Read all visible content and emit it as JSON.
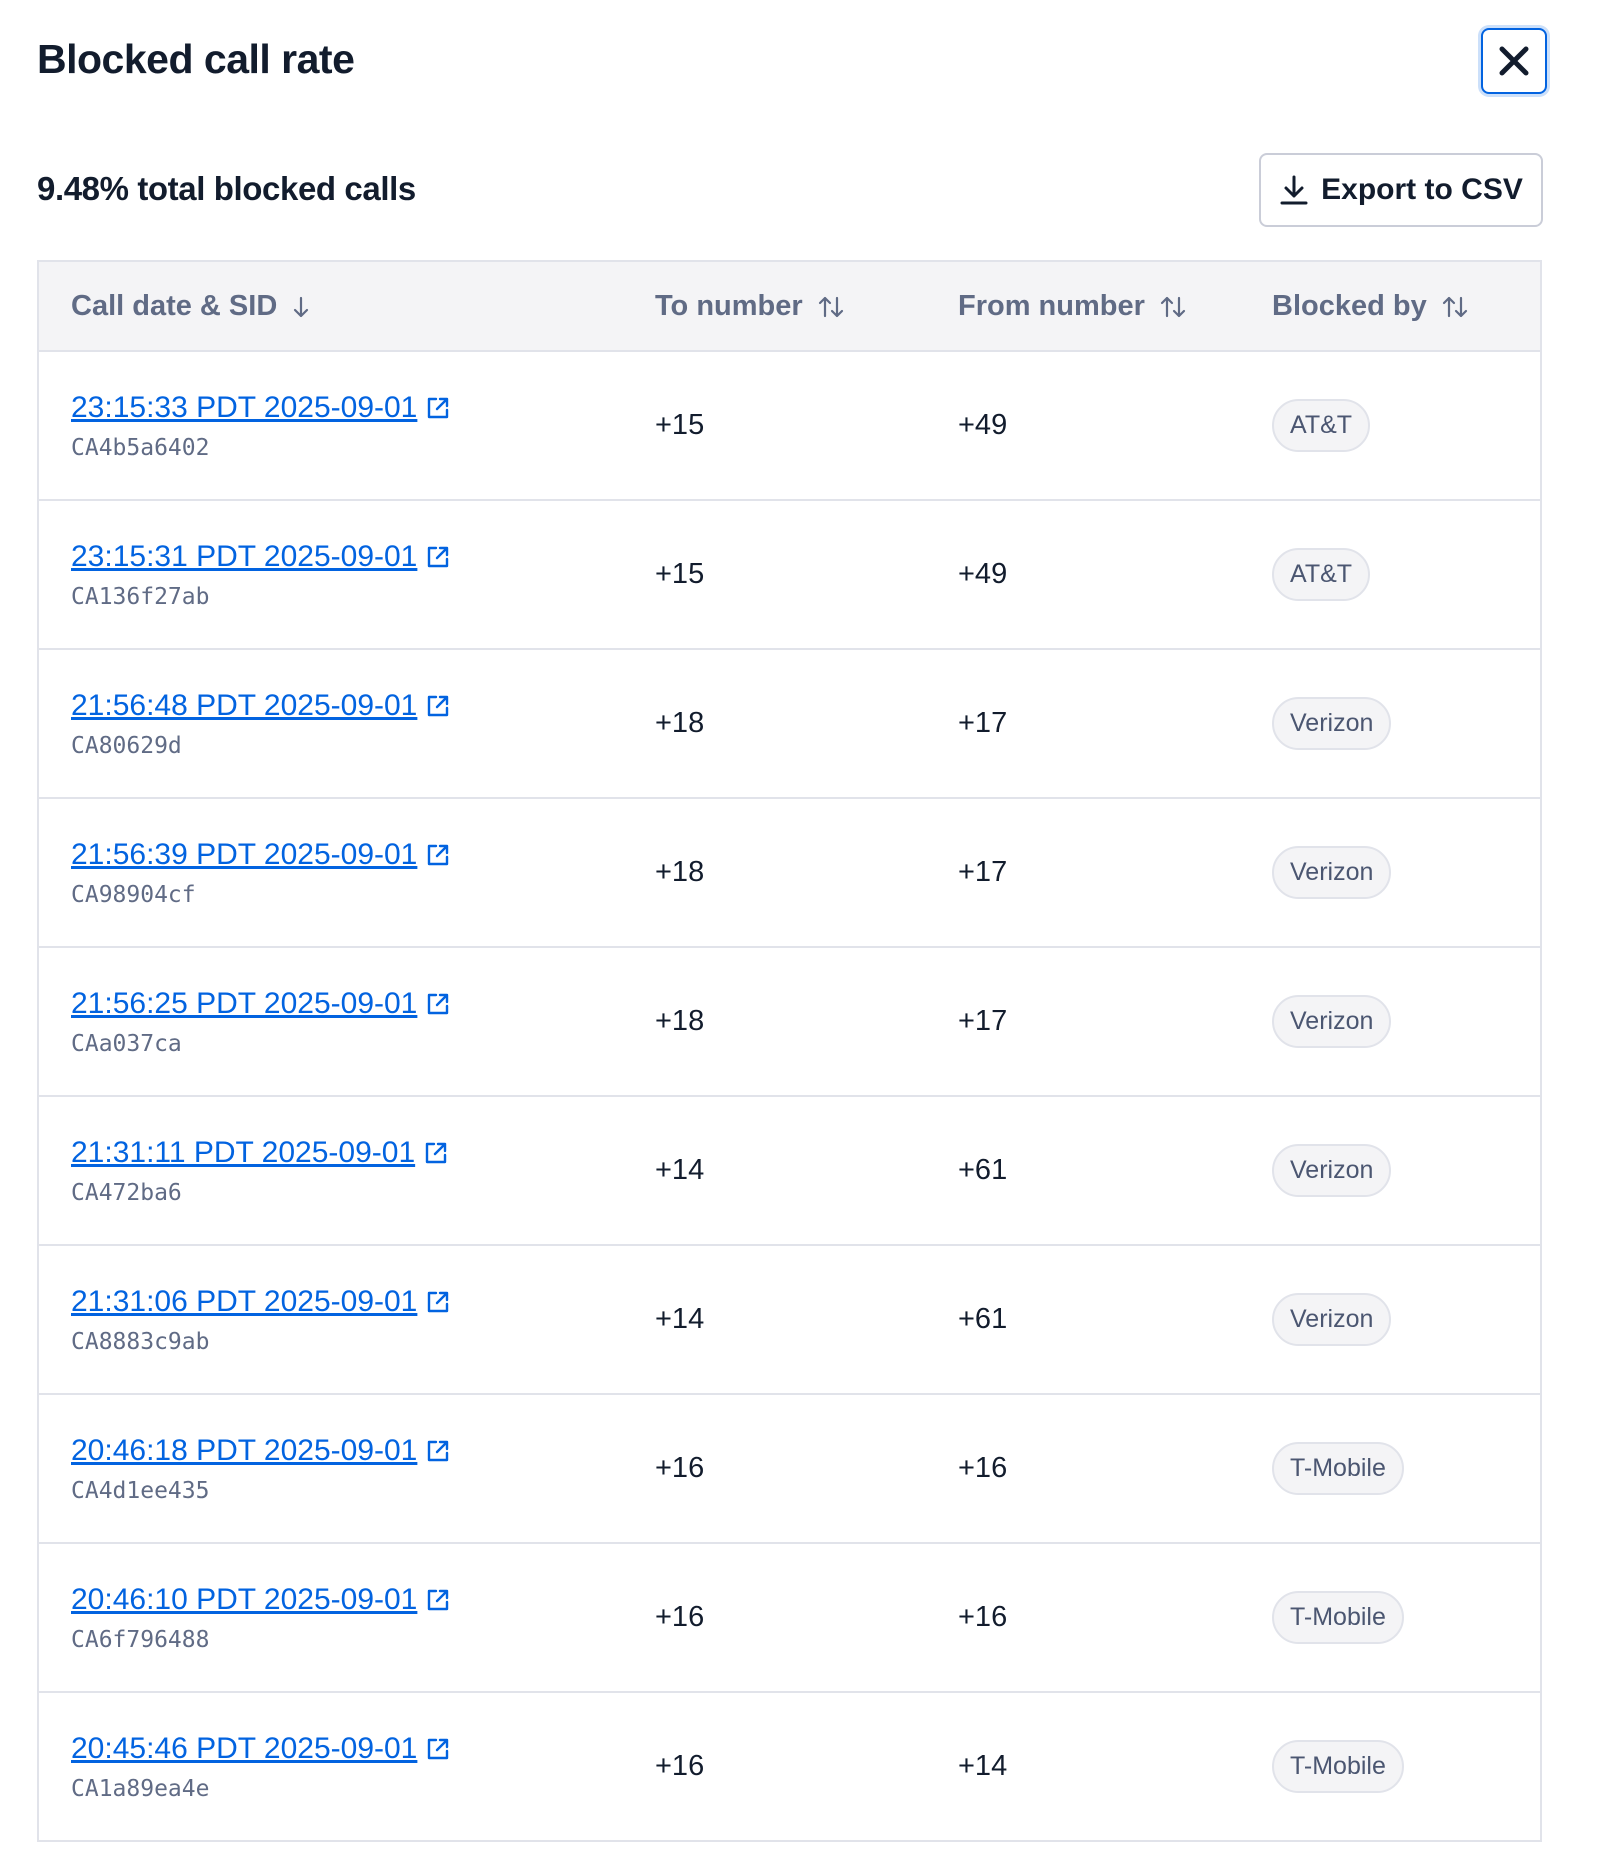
{
  "header": {
    "title": "Blocked call rate"
  },
  "summary": "9.48% total blocked calls",
  "export_button": "Export to CSV",
  "table": {
    "columns": [
      "Call date & SID",
      "To number",
      "From number",
      "Blocked by"
    ],
    "rows": [
      {
        "date": "23:15:33 PDT 2025-09-01",
        "sid": "CA4b5a6402",
        "to": "+15",
        "from": "+49",
        "blocked_by": "AT&T"
      },
      {
        "date": "23:15:31 PDT 2025-09-01",
        "sid": "CA136f27ab",
        "to": "+15",
        "from": "+49",
        "blocked_by": "AT&T"
      },
      {
        "date": "21:56:48 PDT 2025-09-01",
        "sid": "CA80629d",
        "to": "+18",
        "from": "+17",
        "blocked_by": "Verizon"
      },
      {
        "date": "21:56:39 PDT 2025-09-01",
        "sid": "CA98904cf",
        "to": "+18",
        "from": "+17",
        "blocked_by": "Verizon"
      },
      {
        "date": "21:56:25 PDT 2025-09-01",
        "sid": "CAa037ca",
        "to": "+18",
        "from": "+17",
        "blocked_by": "Verizon"
      },
      {
        "date": "21:31:11 PDT 2025-09-01",
        "sid": "CA472ba6",
        "to": "+14",
        "from": "+61",
        "blocked_by": "Verizon"
      },
      {
        "date": "21:31:06 PDT 2025-09-01",
        "sid": "CA8883c9ab",
        "to": "+14",
        "from": "+61",
        "blocked_by": "Verizon"
      },
      {
        "date": "20:46:18 PDT 2025-09-01",
        "sid": "CA4d1ee435",
        "to": "+16",
        "from": "+16",
        "blocked_by": "T-Mobile"
      },
      {
        "date": "20:46:10 PDT 2025-09-01",
        "sid": "CA6f796488",
        "to": "+16",
        "from": "+16",
        "blocked_by": "T-Mobile"
      },
      {
        "date": "20:45:46 PDT 2025-09-01",
        "sid": "CA1a89ea4e",
        "to": "+16",
        "from": "+14",
        "blocked_by": "T-Mobile"
      }
    ]
  }
}
